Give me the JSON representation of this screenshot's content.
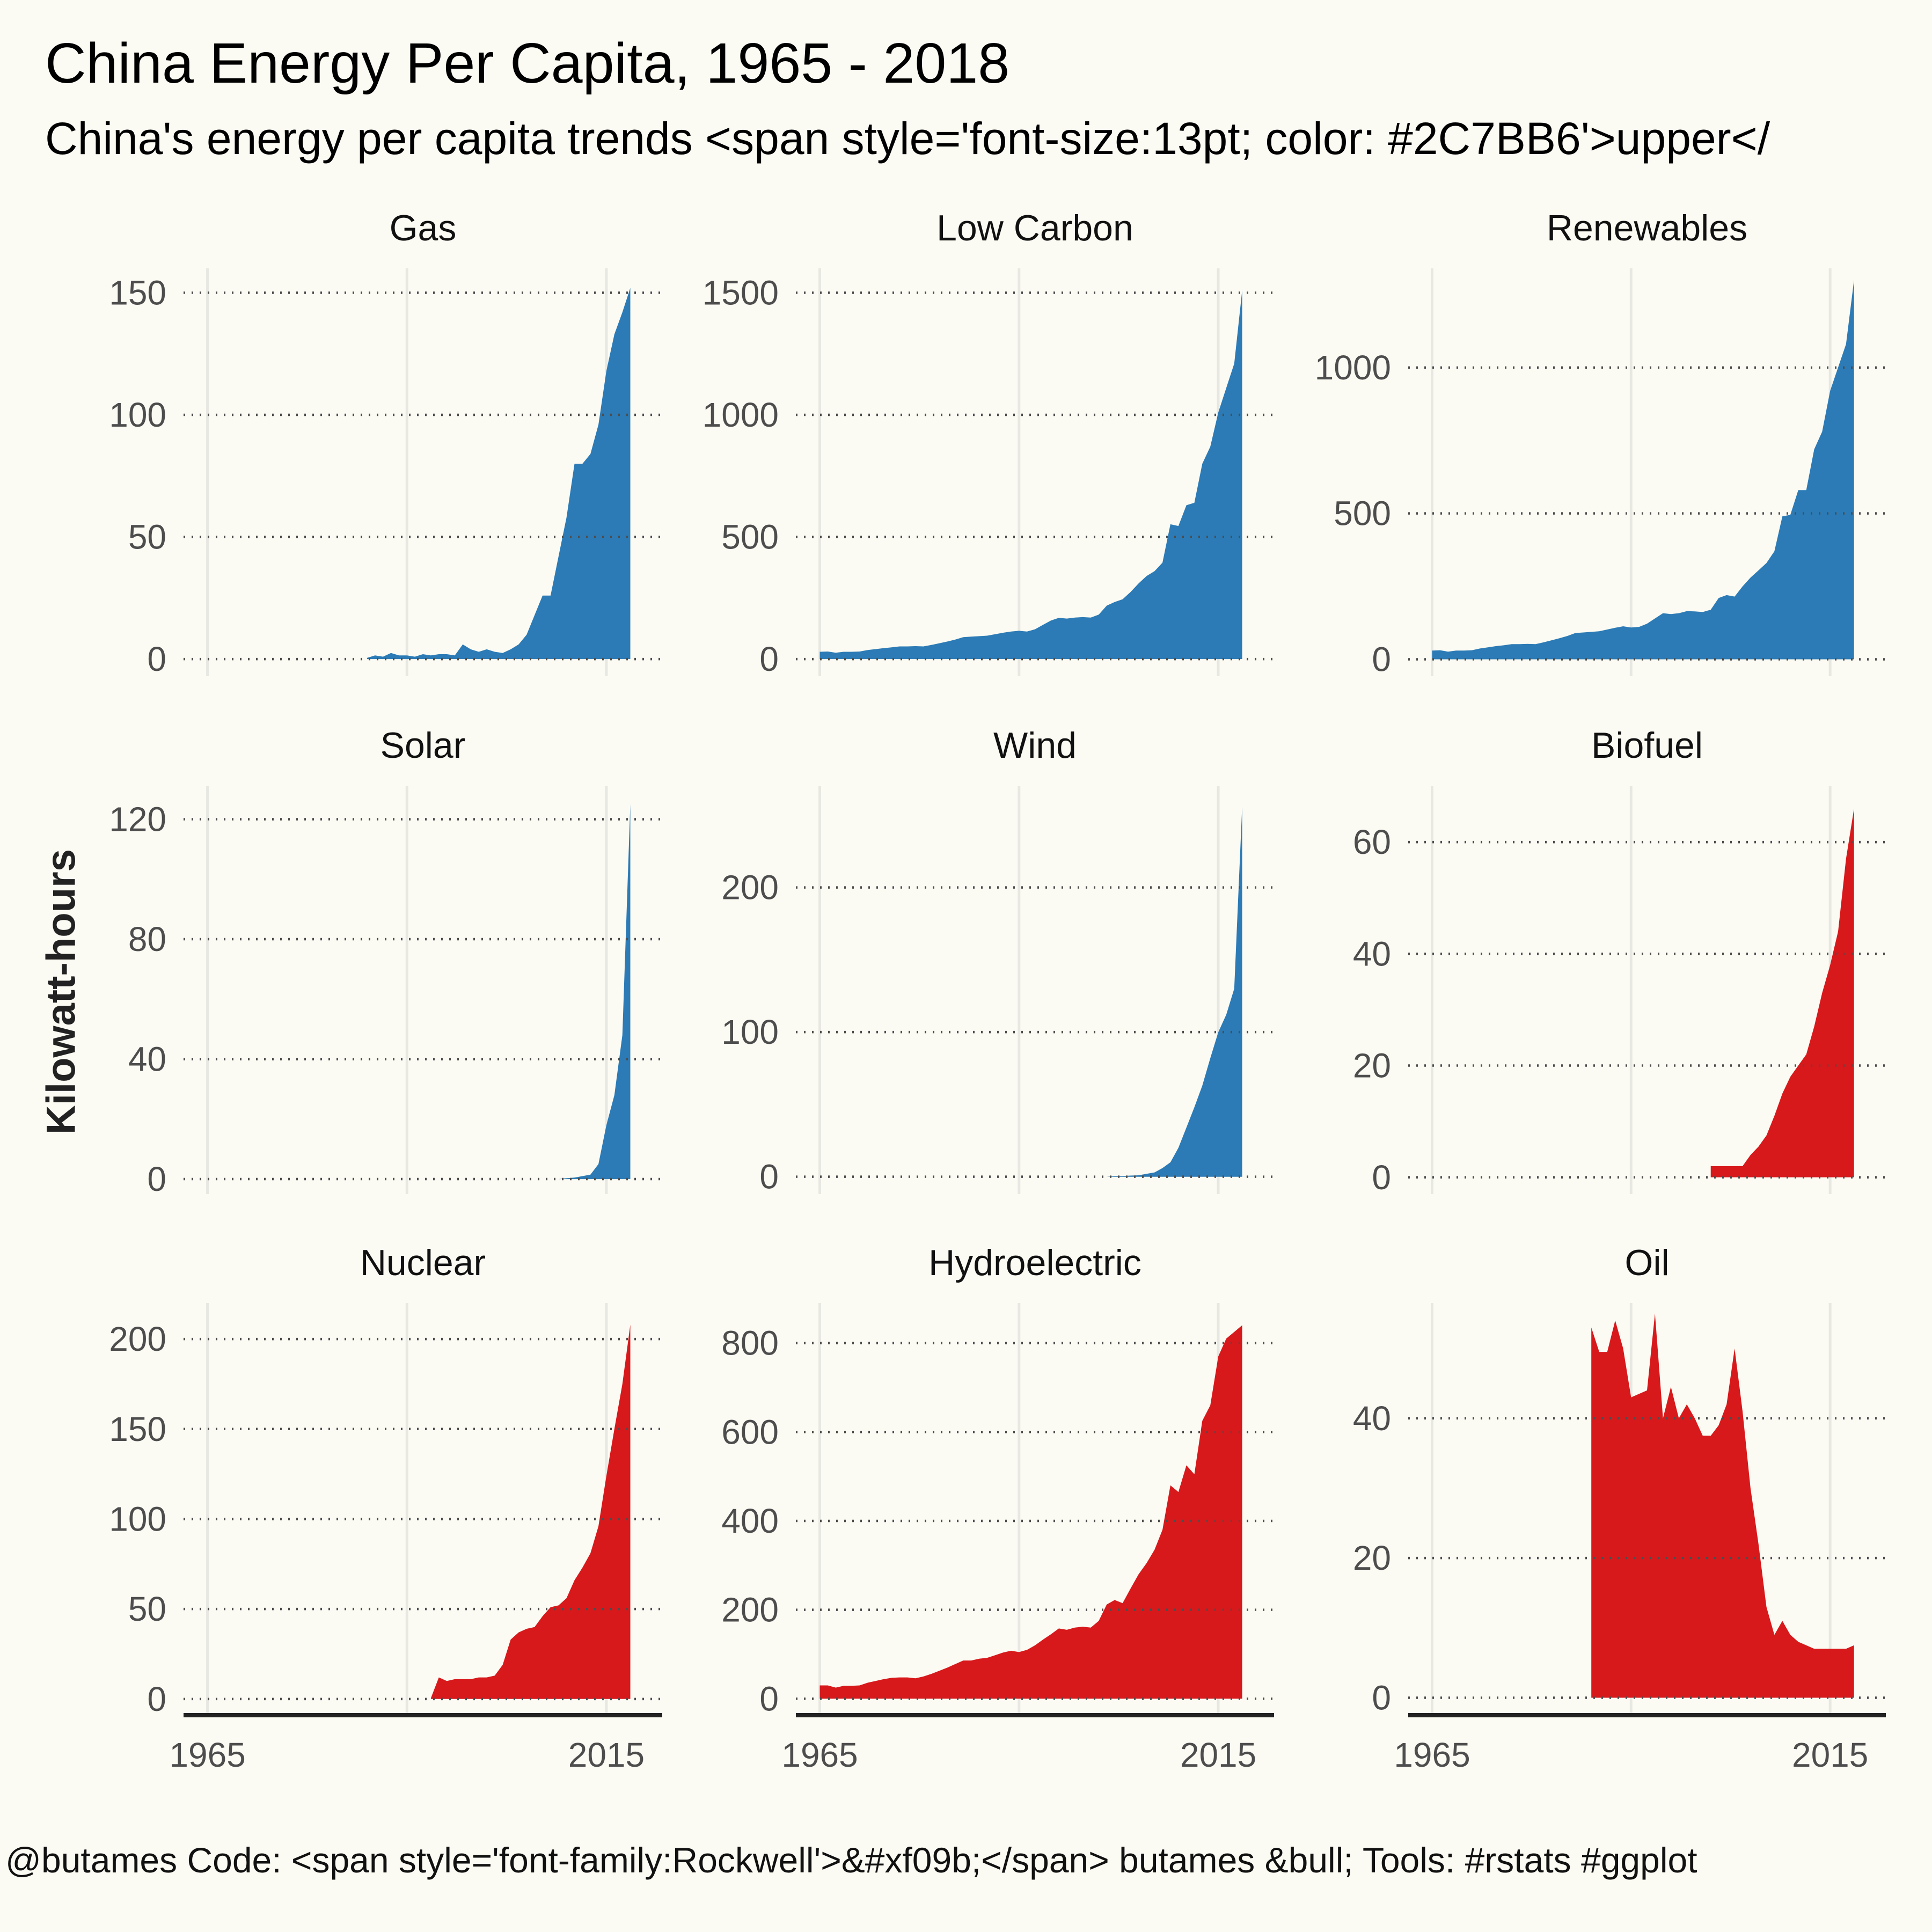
{
  "title": "China Energy Per Capita, 1965 - 2018",
  "subtitle": "China's energy per capita trends <span style='font-size:13pt; color: #2C7BB6'>upper</",
  "caption": "@butames Code: <span style='font-family:Rockwell'>&#xf09b;</span> butames &bull; Tools: #rstats #ggplot",
  "ylabel": "Kilowatt-hours",
  "colors": {
    "blue": "#2c7bb6",
    "red": "#d7191c",
    "background": "#fcfbf3",
    "grid": "#4d4d4d",
    "vgrid": "#e8e8e2",
    "axis": "#222222"
  },
  "chart_data": [
    {
      "type": "area",
      "title": "Gas",
      "color": "#2c7bb6",
      "xlim": [
        1962,
        2022
      ],
      "ylim": [
        -7,
        160
      ],
      "x_ticks": [
        1965,
        2015
      ],
      "y_ticks": [
        0,
        50,
        100,
        150
      ],
      "x": [
        1985,
        1986,
        1987,
        1988,
        1989,
        1990,
        1991,
        1992,
        1993,
        1994,
        1995,
        1996,
        1997,
        1998,
        1999,
        2000,
        2001,
        2002,
        2003,
        2004,
        2005,
        2006,
        2007,
        2008,
        2009,
        2010,
        2011,
        2012,
        2013,
        2014,
        2015,
        2016,
        2017,
        2018
      ],
      "values": [
        0.5,
        1.5,
        1,
        2.5,
        1.5,
        1.5,
        1,
        2,
        1.5,
        2,
        2,
        1.5,
        6,
        4,
        3,
        4,
        3,
        2.5,
        4,
        6,
        10,
        18,
        26,
        26,
        42,
        58,
        80,
        80,
        84,
        96,
        118,
        133,
        142,
        152
      ]
    },
    {
      "type": "area",
      "title": "Low Carbon",
      "color": "#2c7bb6",
      "xlim": [
        1962,
        2022
      ],
      "ylim": [
        -70,
        1600
      ],
      "x_ticks": [
        1965,
        2015
      ],
      "y_ticks": [
        0,
        500,
        1000,
        1500
      ],
      "x": [
        1965,
        1966,
        1967,
        1968,
        1969,
        1970,
        1971,
        1972,
        1973,
        1974,
        1975,
        1976,
        1977,
        1978,
        1979,
        1980,
        1981,
        1982,
        1983,
        1984,
        1985,
        1986,
        1987,
        1988,
        1989,
        1990,
        1991,
        1992,
        1993,
        1994,
        1995,
        1996,
        1997,
        1998,
        1999,
        2000,
        2001,
        2002,
        2003,
        2004,
        2005,
        2006,
        2007,
        2008,
        2009,
        2010,
        2011,
        2012,
        2013,
        2014,
        2015,
        2016,
        2017,
        2018
      ],
      "values": [
        30,
        31,
        26,
        30,
        30,
        31,
        37,
        41,
        45,
        48,
        52,
        52,
        53,
        52,
        58,
        65,
        72,
        80,
        90,
        92,
        94,
        96,
        102,
        108,
        113,
        116,
        113,
        122,
        140,
        158,
        169,
        166,
        170,
        172,
        170,
        182,
        219,
        234,
        245,
        275,
        310,
        340,
        360,
        395,
        552,
        545,
        630,
        640,
        800,
        870,
        1010,
        1110,
        1210,
        1510
      ]
    },
    {
      "type": "area",
      "title": "Renewables",
      "color": "#2c7bb6",
      "xlim": [
        1962,
        2022
      ],
      "ylim": [
        -58,
        1340
      ],
      "x_ticks": [
        1965,
        2015
      ],
      "y_ticks": [
        0,
        500,
        1000
      ],
      "x": [
        1965,
        1966,
        1967,
        1968,
        1969,
        1970,
        1971,
        1972,
        1973,
        1974,
        1975,
        1976,
        1977,
        1978,
        1979,
        1980,
        1981,
        1982,
        1983,
        1984,
        1985,
        1986,
        1987,
        1988,
        1989,
        1990,
        1991,
        1992,
        1993,
        1994,
        1995,
        1996,
        1997,
        1998,
        1999,
        2000,
        2001,
        2002,
        2003,
        2004,
        2005,
        2006,
        2007,
        2008,
        2009,
        2010,
        2011,
        2012,
        2013,
        2014,
        2015,
        2016,
        2017,
        2018
      ],
      "values": [
        30,
        31,
        26,
        30,
        30,
        31,
        37,
        41,
        45,
        48,
        52,
        52,
        53,
        52,
        58,
        65,
        72,
        80,
        90,
        92,
        94,
        96,
        102,
        108,
        113,
        109,
        111,
        122,
        140,
        158,
        155,
        158,
        165,
        164,
        162,
        170,
        210,
        220,
        215,
        250,
        280,
        305,
        330,
        370,
        490,
        495,
        580,
        580,
        720,
        780,
        920,
        1000,
        1080,
        1300
      ]
    },
    {
      "type": "area",
      "title": "Solar",
      "color": "#2c7bb6",
      "xlim": [
        1962,
        2022
      ],
      "ylim": [
        -5,
        131
      ],
      "x_ticks": [
        1965,
        2015
      ],
      "y_ticks": [
        0,
        40,
        80,
        120
      ],
      "x": [
        2005,
        2006,
        2007,
        2008,
        2009,
        2010,
        2011,
        2012,
        2013,
        2014,
        2015,
        2016,
        2017,
        2018
      ],
      "values": [
        0,
        0,
        0,
        0,
        0,
        0.3,
        0.5,
        1,
        1.5,
        5,
        18,
        28,
        48,
        125
      ]
    },
    {
      "type": "area",
      "title": "Wind",
      "color": "#2c7bb6",
      "xlim": [
        1962,
        2022
      ],
      "ylim": [
        -12,
        270
      ],
      "x_ticks": [
        1965,
        2015
      ],
      "y_ticks": [
        0,
        100,
        200
      ],
      "x": [
        1992,
        1993,
        1994,
        1995,
        1996,
        1997,
        1998,
        1999,
        2000,
        2001,
        2002,
        2003,
        2004,
        2005,
        2006,
        2007,
        2008,
        2009,
        2010,
        2011,
        2012,
        2013,
        2014,
        2015,
        2016,
        2017,
        2018
      ],
      "values": [
        0,
        0,
        0,
        0,
        0,
        0,
        0,
        0,
        0,
        0,
        0.5,
        0.5,
        0.8,
        1,
        2,
        3,
        6,
        10,
        20,
        34,
        48,
        63,
        82,
        100,
        112,
        130,
        256
      ]
    },
    {
      "type": "area",
      "title": "Biofuel",
      "color": "#d7191c",
      "xlim": [
        1962,
        2022
      ],
      "ylim": [
        -3,
        70
      ],
      "x_ticks": [
        1965,
        2015
      ],
      "y_ticks": [
        0,
        20,
        40,
        60
      ],
      "x": [
        2000,
        2001,
        2002,
        2003,
        2004,
        2005,
        2006,
        2007,
        2008,
        2009,
        2010,
        2011,
        2012,
        2013,
        2014,
        2015,
        2016,
        2017,
        2018
      ],
      "values": [
        2,
        2,
        2,
        2,
        2,
        4,
        5.5,
        7.5,
        11,
        15,
        18,
        20,
        22,
        27,
        33,
        38,
        44,
        57,
        66
      ]
    },
    {
      "type": "area",
      "title": "Nuclear",
      "color": "#d7191c",
      "xlim": [
        1962,
        2022
      ],
      "ylim": [
        -9,
        220
      ],
      "x_ticks": [
        1965,
        2015
      ],
      "y_ticks": [
        0,
        50,
        100,
        150,
        200
      ],
      "x": [
        1993,
        1994,
        1995,
        1996,
        1997,
        1998,
        1999,
        2000,
        2001,
        2002,
        2003,
        2004,
        2005,
        2006,
        2007,
        2008,
        2009,
        2010,
        2011,
        2012,
        2013,
        2014,
        2015,
        2016,
        2017,
        2018
      ],
      "values": [
        0.5,
        12,
        10,
        11,
        11,
        11,
        12,
        12,
        13,
        19,
        33,
        37,
        39,
        40,
        46,
        51,
        52,
        56,
        66,
        73,
        81,
        96,
        124,
        150,
        175,
        208
      ]
    },
    {
      "type": "area",
      "title": "Hydroelectric",
      "color": "#d7191c",
      "xlim": [
        1962,
        2022
      ],
      "ylim": [
        -37,
        890
      ],
      "x_ticks": [
        1965,
        2015
      ],
      "y_ticks": [
        0,
        200,
        400,
        600,
        800
      ],
      "x": [
        1965,
        1966,
        1967,
        1968,
        1969,
        1970,
        1971,
        1972,
        1973,
        1974,
        1975,
        1976,
        1977,
        1978,
        1979,
        1980,
        1981,
        1982,
        1983,
        1984,
        1985,
        1986,
        1987,
        1988,
        1989,
        1990,
        1991,
        1992,
        1993,
        1994,
        1995,
        1996,
        1997,
        1998,
        1999,
        2000,
        2001,
        2002,
        2003,
        2004,
        2005,
        2006,
        2007,
        2008,
        2009,
        2010,
        2011,
        2012,
        2013,
        2014,
        2015,
        2016,
        2017,
        2018
      ],
      "values": [
        30,
        30,
        25,
        29,
        29,
        30,
        36,
        40,
        44,
        47,
        48,
        48,
        46,
        50,
        56,
        63,
        70,
        78,
        86,
        86,
        90,
        92,
        98,
        104,
        108,
        105,
        110,
        120,
        133,
        145,
        158,
        155,
        160,
        162,
        160,
        175,
        212,
        222,
        215,
        248,
        280,
        305,
        335,
        380,
        480,
        465,
        525,
        505,
        625,
        660,
        770,
        810,
        825,
        840
      ]
    },
    {
      "type": "area",
      "title": "Oil",
      "color": "#d7191c",
      "xlim": [
        1962,
        2022
      ],
      "ylim": [
        -2.5,
        56.5
      ],
      "x_ticks": [
        1965,
        2015
      ],
      "y_ticks": [
        0,
        20,
        40
      ],
      "x": [
        1985,
        1986,
        1987,
        1988,
        1989,
        1990,
        1991,
        1992,
        1993,
        1994,
        1995,
        1996,
        1997,
        1998,
        1999,
        2000,
        2001,
        2002,
        2003,
        2004,
        2005,
        2006,
        2007,
        2008,
        2009,
        2010,
        2011,
        2012,
        2013,
        2014,
        2015,
        2016,
        2017,
        2018
      ],
      "values": [
        53,
        49.5,
        49.5,
        54,
        50,
        43,
        43.5,
        44,
        55,
        40,
        44.5,
        40,
        42,
        40,
        37.5,
        37.5,
        39,
        42,
        50,
        41,
        30,
        22,
        13,
        9,
        11,
        9,
        8,
        7.5,
        7,
        7,
        7,
        7,
        7,
        7.5
      ]
    }
  ]
}
